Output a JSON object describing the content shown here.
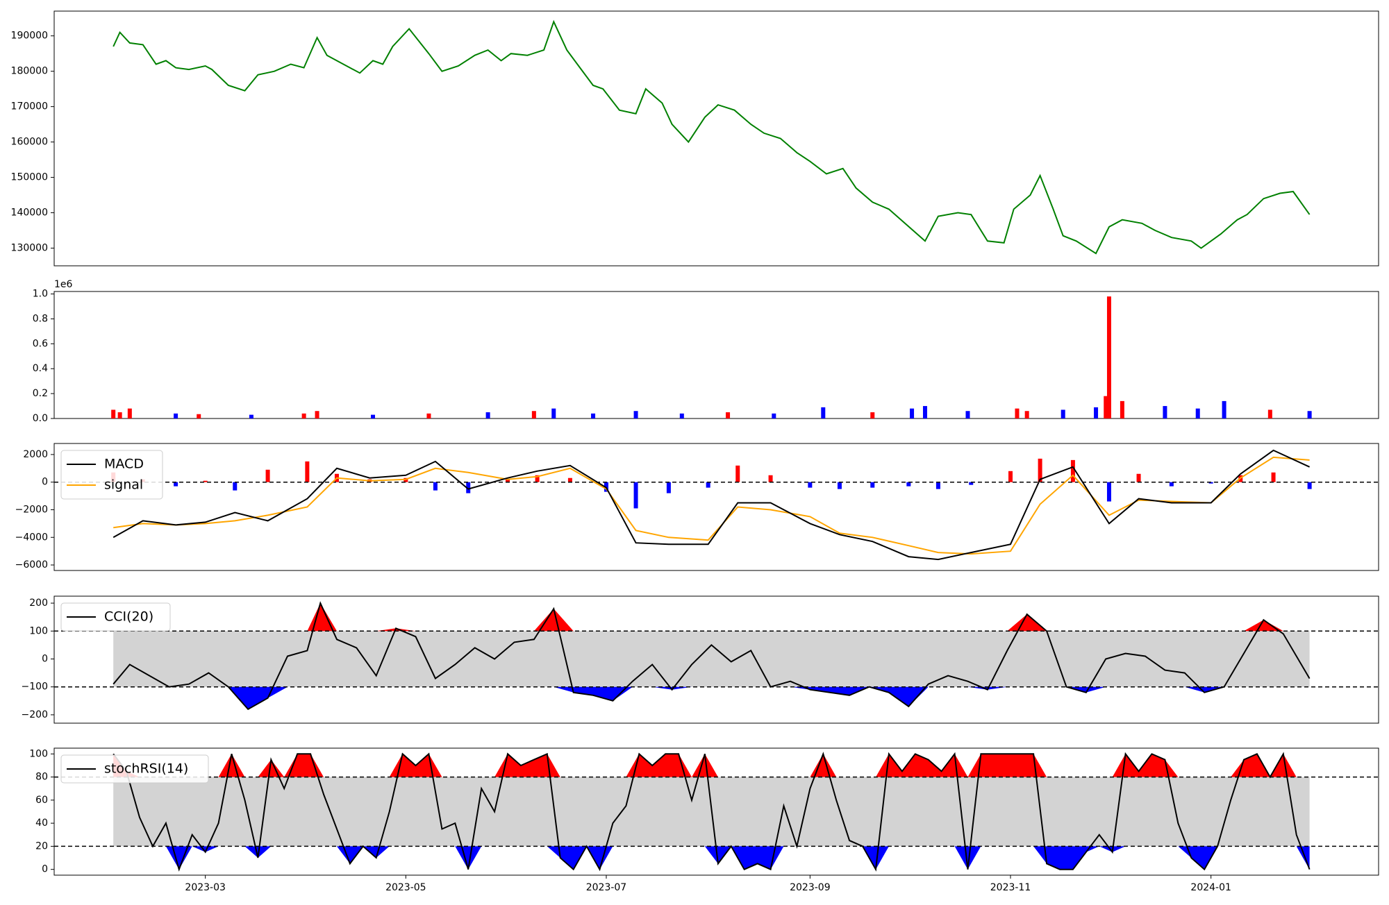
{
  "chart_data": [
    {
      "type": "line",
      "panel": "price",
      "ylim": [
        125000,
        197000
      ],
      "yticks": [
        130000,
        140000,
        150000,
        160000,
        170000,
        180000,
        190000
      ],
      "ytick_labels": [
        "130000",
        "140000",
        "150000",
        "160000",
        "170000",
        "180000",
        "190000"
      ],
      "colors": {
        "line": "#008000"
      },
      "series": [
        {
          "x": [
            "2023-02-01",
            "2023-02-03",
            "2023-02-06",
            "2023-02-10",
            "2023-02-14",
            "2023-02-17",
            "2023-02-20",
            "2023-02-24",
            "2023-03-01",
            "2023-03-03",
            "2023-03-08",
            "2023-03-13",
            "2023-03-17",
            "2023-03-22",
            "2023-03-27",
            "2023-03-31",
            "2023-04-04",
            "2023-04-07",
            "2023-04-12",
            "2023-04-17",
            "2023-04-21",
            "2023-04-24",
            "2023-04-27",
            "2023-05-02",
            "2023-05-08",
            "2023-05-12",
            "2023-05-17",
            "2023-05-22",
            "2023-05-26",
            "2023-05-30",
            "2023-06-02",
            "2023-06-07",
            "2023-06-12",
            "2023-06-15",
            "2023-06-19",
            "2023-06-23",
            "2023-06-27",
            "2023-06-30",
            "2023-07-05",
            "2023-07-10",
            "2023-07-13",
            "2023-07-18",
            "2023-07-21",
            "2023-07-26",
            "2023-07-31",
            "2023-08-04",
            "2023-08-09",
            "2023-08-14",
            "2023-08-18",
            "2023-08-23",
            "2023-08-28",
            "2023-09-01",
            "2023-09-06",
            "2023-09-11",
            "2023-09-15",
            "2023-09-20",
            "2023-09-25",
            "2023-10-06",
            "2023-10-10",
            "2023-10-16",
            "2023-10-20",
            "2023-10-25",
            "2023-10-30",
            "2023-11-02",
            "2023-11-07",
            "2023-11-10",
            "2023-11-14",
            "2023-11-17",
            "2023-11-21",
            "2023-11-27",
            "2023-12-01",
            "2023-12-05",
            "2023-12-11",
            "2023-12-15",
            "2023-12-20",
            "2023-12-26",
            "2023-12-29",
            "2024-01-04",
            "2024-01-09",
            "2024-01-12",
            "2024-01-17",
            "2024-01-22",
            "2024-01-26",
            "2024-01-31"
          ],
          "y": [
            187000,
            191000,
            188000,
            187500,
            182000,
            183000,
            181000,
            180500,
            181500,
            180500,
            176000,
            174500,
            179000,
            180000,
            182000,
            181000,
            189500,
            184500,
            182000,
            179500,
            183000,
            182000,
            187000,
            192000,
            185000,
            180000,
            181500,
            184500,
            186000,
            183000,
            185000,
            184500,
            186000,
            194000,
            186000,
            181000,
            176000,
            175000,
            169000,
            168000,
            175000,
            171000,
            165000,
            160000,
            167000,
            170500,
            169000,
            165000,
            162500,
            161000,
            157000,
            154500,
            151000,
            152500,
            147000,
            143000,
            141000,
            132000,
            139000,
            140000,
            139500,
            132000,
            131500,
            141000,
            145000,
            150500,
            141000,
            133500,
            132000,
            128500,
            136000,
            138000,
            137000,
            135000,
            133000,
            132000,
            130000,
            134000,
            138000,
            139500,
            144000,
            145500,
            146000,
            139500
          ]
        }
      ]
    },
    {
      "type": "bar",
      "panel": "volume",
      "ylim": [
        0,
        1.02
      ],
      "yticks": [
        0,
        0.2,
        0.4,
        0.6,
        0.8,
        1.0
      ],
      "ytick_labels": [
        "0.0",
        "0.2",
        "0.4",
        "0.6",
        "0.8",
        "1.0"
      ],
      "offset_label": "1e6",
      "colors": {
        "up": "#ff0000",
        "down": "#0000ff"
      },
      "x": [
        "2023-02-01",
        "2023-02-03",
        "2023-02-06",
        "2023-02-20",
        "2023-02-27",
        "2023-03-15",
        "2023-03-31",
        "2023-04-04",
        "2023-04-21",
        "2023-05-08",
        "2023-05-26",
        "2023-06-09",
        "2023-06-15",
        "2023-06-27",
        "2023-07-10",
        "2023-07-24",
        "2023-08-07",
        "2023-08-21",
        "2023-09-05",
        "2023-09-20",
        "2023-10-02",
        "2023-10-06",
        "2023-10-19",
        "2023-11-03",
        "2023-11-06",
        "2023-11-17",
        "2023-11-27",
        "2023-11-30",
        "2023-12-01",
        "2023-12-05",
        "2023-12-18",
        "2023-12-28",
        "2024-01-05",
        "2024-01-19",
        "2024-01-31"
      ],
      "values": [
        0.07,
        0.05,
        0.08,
        0.04,
        0.035,
        0.03,
        0.04,
        0.06,
        0.03,
        0.04,
        0.05,
        0.06,
        0.08,
        0.04,
        0.06,
        0.04,
        0.05,
        0.04,
        0.09,
        0.05,
        0.08,
        0.1,
        0.06,
        0.08,
        0.06,
        0.07,
        0.09,
        0.18,
        0.98,
        0.14,
        0.1,
        0.08,
        0.14,
        0.07,
        0.06
      ],
      "direction": [
        "up",
        "up",
        "up",
        "down",
        "up",
        "down",
        "up",
        "up",
        "down",
        "up",
        "down",
        "up",
        "down",
        "down",
        "down",
        "down",
        "up",
        "down",
        "down",
        "up",
        "down",
        "down",
        "down",
        "up",
        "up",
        "down",
        "down",
        "up",
        "up",
        "up",
        "down",
        "down",
        "down",
        "up",
        "down"
      ]
    },
    {
      "type": "line",
      "panel": "macd",
      "ylim": [
        -6400,
        2800
      ],
      "yticks": [
        -6000,
        -4000,
        -2000,
        0,
        2000
      ],
      "ytick_labels": [
        "−6000",
        "−4000",
        "−2000",
        "0",
        "2000"
      ],
      "legend": [
        "MACD",
        "signal"
      ],
      "colors": {
        "macd": "#000000",
        "signal": "#ffa500",
        "hist_pos": "#ff0000",
        "hist_neg": "#0000ff"
      },
      "x": [
        "2023-02-01",
        "2023-02-10",
        "2023-02-20",
        "2023-03-01",
        "2023-03-10",
        "2023-03-20",
        "2023-04-01",
        "2023-04-10",
        "2023-04-20",
        "2023-05-01",
        "2023-05-10",
        "2023-05-20",
        "2023-06-01",
        "2023-06-10",
        "2023-06-20",
        "2023-07-01",
        "2023-07-10",
        "2023-07-20",
        "2023-08-01",
        "2023-08-10",
        "2023-08-20",
        "2023-09-01",
        "2023-09-10",
        "2023-09-20",
        "2023-10-01",
        "2023-10-10",
        "2023-10-20",
        "2023-11-01",
        "2023-11-10",
        "2023-11-20",
        "2023-12-01",
        "2023-12-10",
        "2023-12-20",
        "2024-01-01",
        "2024-01-10",
        "2024-01-20",
        "2024-01-31"
      ],
      "series": [
        {
          "name": "MACD",
          "values": [
            -4000,
            -2800,
            -3100,
            -2900,
            -2200,
            -2800,
            -1200,
            1000,
            300,
            500,
            1500,
            -500,
            300,
            800,
            1200,
            -400,
            -4400,
            -4500,
            -4500,
            -1500,
            -1500,
            -3000,
            -3800,
            -4300,
            -5400,
            -5600,
            -5100,
            -4500,
            200,
            1100,
            -3000,
            -1200,
            -1500,
            -1500,
            600,
            2300,
            1100
          ]
        },
        {
          "name": "signal",
          "values": [
            -3300,
            -3000,
            -3100,
            -3000,
            -2800,
            -2400,
            -1800,
            300,
            100,
            200,
            1000,
            700,
            200,
            400,
            1000,
            -500,
            -3500,
            -4000,
            -4200,
            -1800,
            -2000,
            -2500,
            -3700,
            -4000,
            -4600,
            -5100,
            -5200,
            -5000,
            -1600,
            500,
            -2400,
            -1300,
            -1400,
            -1500,
            300,
            1800,
            1600
          ]
        }
      ],
      "histogram": [
        700,
        200,
        -300,
        100,
        -600,
        900,
        1500,
        600,
        200,
        300,
        -600,
        -800,
        200,
        500,
        300,
        -700,
        -1900,
        -800,
        -400,
        1200,
        500,
        -400,
        -500,
        -400,
        -300,
        -500,
        -200,
        800,
        1700,
        1600,
        -1400,
        600,
        -300,
        -100,
        500,
        700,
        -500
      ]
    },
    {
      "type": "line",
      "panel": "cci",
      "ylim": [
        -230,
        225
      ],
      "yticks": [
        -200,
        -100,
        0,
        100,
        200
      ],
      "ytick_labels": [
        "−200",
        "−100",
        "0",
        "100",
        "200"
      ],
      "bands": [
        -100,
        100
      ],
      "legend": [
        "CCI(20)"
      ],
      "colors": {
        "line": "#000000",
        "fill_pos": "#ff0000",
        "fill_neg": "#0000ff",
        "band": "#d3d3d3"
      },
      "x": [
        "2023-02-01",
        "2023-02-06",
        "2023-02-12",
        "2023-02-18",
        "2023-02-24",
        "2023-03-02",
        "2023-03-08",
        "2023-03-14",
        "2023-03-20",
        "2023-03-26",
        "2023-04-01",
        "2023-04-05",
        "2023-04-10",
        "2023-04-16",
        "2023-04-22",
        "2023-04-28",
        "2023-05-04",
        "2023-05-10",
        "2023-05-16",
        "2023-05-22",
        "2023-05-28",
        "2023-06-03",
        "2023-06-09",
        "2023-06-15",
        "2023-06-21",
        "2023-06-27",
        "2023-07-03",
        "2023-07-09",
        "2023-07-15",
        "2023-07-21",
        "2023-07-27",
        "2023-08-02",
        "2023-08-08",
        "2023-08-14",
        "2023-08-20",
        "2023-08-26",
        "2023-09-01",
        "2023-09-07",
        "2023-09-13",
        "2023-09-19",
        "2023-09-25",
        "2023-10-01",
        "2023-10-07",
        "2023-10-13",
        "2023-10-19",
        "2023-10-25",
        "2023-10-31",
        "2023-11-06",
        "2023-11-12",
        "2023-11-18",
        "2023-11-24",
        "2023-11-30",
        "2023-12-06",
        "2023-12-12",
        "2023-12-18",
        "2023-12-24",
        "2023-12-30",
        "2024-01-05",
        "2024-01-11",
        "2024-01-17",
        "2024-01-23",
        "2024-01-31"
      ],
      "values": [
        -90,
        -20,
        -60,
        -100,
        -90,
        -50,
        -100,
        -180,
        -140,
        10,
        30,
        200,
        70,
        40,
        -60,
        110,
        80,
        -70,
        -20,
        40,
        0,
        60,
        70,
        180,
        -120,
        -130,
        -150,
        -80,
        -20,
        -110,
        -20,
        50,
        -10,
        30,
        -100,
        -80,
        -110,
        -120,
        -130,
        -100,
        -120,
        -170,
        -90,
        -60,
        -80,
        -110,
        30,
        160,
        100,
        -100,
        -120,
        0,
        20,
        10,
        -40,
        -50,
        -120,
        -100,
        20,
        140,
        90,
        -70
      ]
    },
    {
      "type": "line",
      "panel": "stochrsi",
      "ylim": [
        -5,
        105
      ],
      "yticks": [
        0,
        20,
        40,
        60,
        80,
        100
      ],
      "ytick_labels": [
        "0",
        "20",
        "40",
        "60",
        "80",
        "100"
      ],
      "bands": [
        20,
        80
      ],
      "legend": [
        "stochRSI(14)"
      ],
      "colors": {
        "line": "#000000",
        "fill_pos": "#ff0000",
        "fill_neg": "#0000ff",
        "band": "#d3d3d3"
      },
      "x": [
        "2023-02-01",
        "2023-02-05",
        "2023-02-09",
        "2023-02-13",
        "2023-02-17",
        "2023-02-21",
        "2023-02-25",
        "2023-03-01",
        "2023-03-05",
        "2023-03-09",
        "2023-03-13",
        "2023-03-17",
        "2023-03-21",
        "2023-03-25",
        "2023-03-29",
        "2023-04-02",
        "2023-04-06",
        "2023-04-10",
        "2023-04-14",
        "2023-04-18",
        "2023-04-22",
        "2023-04-26",
        "2023-04-30",
        "2023-05-04",
        "2023-05-08",
        "2023-05-12",
        "2023-05-16",
        "2023-05-20",
        "2023-05-24",
        "2023-05-28",
        "2023-06-01",
        "2023-06-05",
        "2023-06-09",
        "2023-06-13",
        "2023-06-17",
        "2023-06-21",
        "2023-06-25",
        "2023-06-29",
        "2023-07-03",
        "2023-07-07",
        "2023-07-11",
        "2023-07-15",
        "2023-07-19",
        "2023-07-23",
        "2023-07-27",
        "2023-07-31",
        "2023-08-04",
        "2023-08-08",
        "2023-08-12",
        "2023-08-16",
        "2023-08-20",
        "2023-08-24",
        "2023-08-28",
        "2023-09-01",
        "2023-09-05",
        "2023-09-09",
        "2023-09-13",
        "2023-09-17",
        "2023-09-21",
        "2023-09-25",
        "2023-09-29",
        "2023-10-03",
        "2023-10-07",
        "2023-10-11",
        "2023-10-15",
        "2023-10-19",
        "2023-10-23",
        "2023-10-27",
        "2023-10-31",
        "2023-11-04",
        "2023-11-08",
        "2023-11-12",
        "2023-11-16",
        "2023-11-20",
        "2023-11-24",
        "2023-11-28",
        "2023-12-02",
        "2023-12-06",
        "2023-12-10",
        "2023-12-14",
        "2023-12-18",
        "2023-12-22",
        "2023-12-26",
        "2023-12-30",
        "2024-01-03",
        "2024-01-07",
        "2024-01-11",
        "2024-01-15",
        "2024-01-19",
        "2024-01-23",
        "2024-01-27",
        "2024-01-31"
      ],
      "values": [
        100,
        85,
        45,
        20,
        40,
        0,
        30,
        15,
        40,
        100,
        60,
        10,
        95,
        70,
        100,
        100,
        65,
        35,
        5,
        20,
        10,
        50,
        100,
        90,
        100,
        35,
        40,
        0,
        70,
        50,
        100,
        90,
        95,
        100,
        10,
        0,
        20,
        0,
        40,
        55,
        100,
        90,
        100,
        100,
        60,
        100,
        5,
        20,
        0,
        5,
        0,
        55,
        20,
        70,
        100,
        60,
        25,
        20,
        0,
        100,
        85,
        100,
        95,
        85,
        100,
        0,
        100,
        100,
        100,
        100,
        100,
        5,
        0,
        0,
        15,
        30,
        15,
        100,
        85,
        100,
        95,
        40,
        10,
        0,
        20,
        60,
        95,
        100,
        80,
        100,
        30,
        0
      ]
    }
  ],
  "x_axis": {
    "domain": [
      "2023-01-14",
      "2024-02-21"
    ],
    "ticks": [
      "2023-03-01",
      "2023-05-01",
      "2023-07-01",
      "2023-09-01",
      "2023-11-01",
      "2024-01-01"
    ],
    "tick_labels": [
      "2023-03",
      "2023-05",
      "2023-07",
      "2023-09",
      "2023-11",
      "2024-01"
    ]
  }
}
